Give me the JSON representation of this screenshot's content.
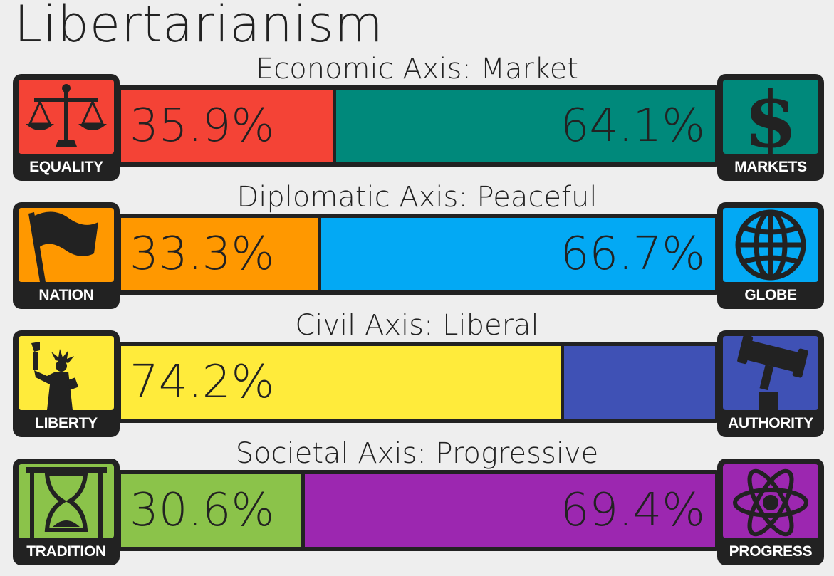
{
  "title": "Libertarianism",
  "chart_data": {
    "type": "bar",
    "orientation": "horizontal-stacked",
    "axes": [
      {
        "label": "Economic Axis: Market",
        "left": {
          "name": "EQUALITY",
          "value": 35.9,
          "text": "35.9%",
          "color": "#f44336",
          "icon": "scales-icon"
        },
        "right": {
          "name": "MARKETS",
          "value": 64.1,
          "text": "64.1%",
          "color": "#00897b",
          "icon": "dollar-icon"
        }
      },
      {
        "label": "Diplomatic Axis: Peaceful",
        "left": {
          "name": "NATION",
          "value": 33.3,
          "text": "33.3%",
          "color": "#ff9800",
          "icon": "flag-icon"
        },
        "right": {
          "name": "GLOBE",
          "value": 66.7,
          "text": "66.7%",
          "color": "#03a9f4",
          "icon": "globe-icon"
        }
      },
      {
        "label": "Civil Axis: Liberal",
        "left": {
          "name": "LIBERTY",
          "value": 74.2,
          "text": "74.2%",
          "color": "#ffeb3b",
          "icon": "statue-of-liberty-icon"
        },
        "right": {
          "name": "AUTHORITY",
          "value": 25.8,
          "text": "",
          "color": "#3f51b5",
          "icon": "gavel-icon"
        }
      },
      {
        "label": "Societal Axis: Progressive",
        "left": {
          "name": "TRADITION",
          "value": 30.6,
          "text": "30.6%",
          "color": "#8bc34a",
          "icon": "hourglass-icon"
        },
        "right": {
          "name": "PROGRESS",
          "value": 69.4,
          "text": "69.4%",
          "color": "#9c27b0",
          "icon": "atom-icon"
        }
      }
    ]
  }
}
